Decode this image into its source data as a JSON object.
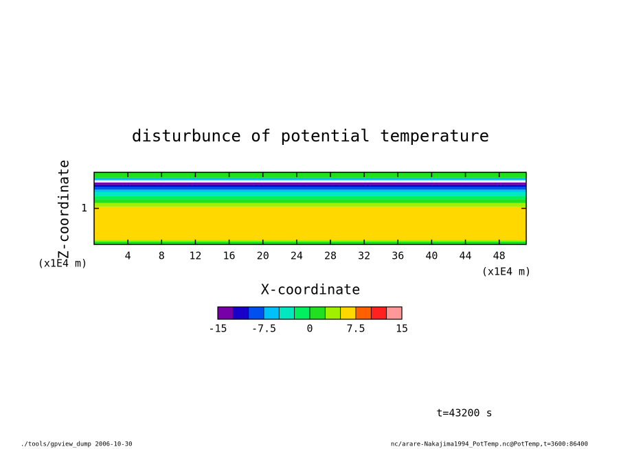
{
  "chart_data": {
    "type": "contour",
    "title": "disturbunce of potential temperature",
    "x_label": "X-coordinate",
    "y_label": "Z-coordinate",
    "x_unit": "(x1E4 m)",
    "y_unit": "(x1E4 m)",
    "xlim": [
      0,
      51.2
    ],
    "ylim": [
      0,
      2
    ],
    "xticks": [
      4,
      8,
      12,
      16,
      20,
      24,
      28,
      32,
      36,
      40,
      44,
      48
    ],
    "yticks": [
      1
    ],
    "levels": [
      -15,
      -12.5,
      -10,
      -7.5,
      -5,
      -2.5,
      0,
      2.5,
      5,
      7.5,
      10,
      12.5,
      15
    ],
    "colors": [
      "#7800a8",
      "#1800c8",
      "#0050f0",
      "#00c0f8",
      "#00e8c0",
      "#00f060",
      "#20e020",
      "#a0f000",
      "#ffd800",
      "#ff6000",
      "#ff2020",
      "#ff9898"
    ],
    "colorbar_ticks": [
      -15,
      -7.5,
      0,
      7.5,
      15
    ],
    "layers": [
      {
        "z": [
          0,
          0.08
        ],
        "value": 1
      },
      {
        "z": [
          0.08,
          0.13
        ],
        "value": 3
      },
      {
        "z": [
          0.13,
          1.05
        ],
        "value": 6
      },
      {
        "z": [
          1.05,
          1.15
        ],
        "value": 3
      },
      {
        "z": [
          1.15,
          1.25
        ],
        "value": 1
      },
      {
        "z": [
          1.25,
          1.35
        ],
        "value": -1
      },
      {
        "z": [
          1.35,
          1.45
        ],
        "value": -4
      },
      {
        "z": [
          1.45,
          1.52
        ],
        "value": -6
      },
      {
        "z": [
          1.52,
          1.6
        ],
        "value": -9
      },
      {
        "z": [
          1.6,
          1.66
        ],
        "value": -11
      },
      {
        "z": [
          1.66,
          1.72
        ],
        "value": -14
      },
      {
        "z": [
          1.72,
          1.78
        ],
        "value": null
      },
      {
        "z": [
          1.78,
          1.85
        ],
        "value": -6
      },
      {
        "z": [
          1.85,
          2
        ],
        "value": 1
      }
    ],
    "time_label": "t=43200 s",
    "footer_left": "./tools/gpview_dump  2006-10-30",
    "footer_right": "nc/arare-Nakajima1994_PotTemp.nc@PotTemp,t=3600:86400"
  }
}
